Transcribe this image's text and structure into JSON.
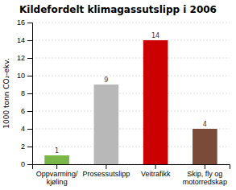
{
  "chart_data": {
    "type": "bar",
    "title": "Kildefordelt klimagassutslipp i 2006",
    "categories": [
      "Oppvarming/ kjøling",
      "Prosessutslipp",
      "Veitrafikk",
      "Skip, fly og motorredskap"
    ],
    "values": [
      1,
      9,
      14,
      4
    ],
    "colors": [
      "#7ab648",
      "#b8b8b8",
      "#cc0000",
      "#7b4b3a"
    ],
    "ylabel": "1000 tonn CO₂-ekv.",
    "ylim": [
      0,
      16
    ],
    "yticks": [
      0,
      2,
      4,
      6,
      8,
      10,
      12,
      14,
      16
    ],
    "grid": true,
    "data_labels": true
  }
}
